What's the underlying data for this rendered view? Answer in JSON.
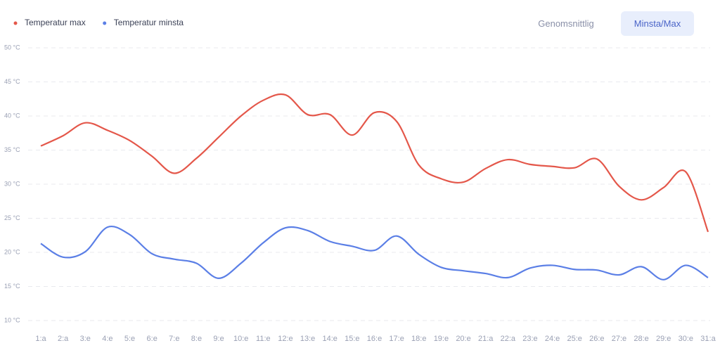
{
  "controls": {
    "options": [
      "Genomsnittlig",
      "Minsta/Max"
    ],
    "active": 1
  },
  "chart_data": {
    "type": "line",
    "categories": [
      "1:a",
      "2:a",
      "3:e",
      "4:e",
      "5:e",
      "6:e",
      "7:e",
      "8:e",
      "9:e",
      "10:e",
      "11:e",
      "12:e",
      "13:e",
      "14:e",
      "15:e",
      "16:e",
      "17:e",
      "18:e",
      "19:e",
      "20:e",
      "21:a",
      "22:a",
      "23:e",
      "24:e",
      "25:e",
      "26:e",
      "27:e",
      "28:e",
      "29:e",
      "30:e",
      "31:a"
    ],
    "series": [
      {
        "name": "Temperatur max",
        "color": "#e4574a",
        "values": [
          35.6,
          37.1,
          39.0,
          37.9,
          36.4,
          34.1,
          31.6,
          33.8,
          36.9,
          40.0,
          42.3,
          43.1,
          40.2,
          40.2,
          37.2,
          40.5,
          39.2,
          32.8,
          30.8,
          30.3,
          32.3,
          33.6,
          32.9,
          32.6,
          32.4,
          33.7,
          29.7,
          27.7,
          29.5,
          31.8,
          23.0
        ]
      },
      {
        "name": "Temperatur minsta",
        "color": "#5b7fe6",
        "values": [
          21.3,
          19.3,
          20.1,
          23.7,
          22.6,
          19.8,
          19.0,
          18.4,
          16.2,
          18.4,
          21.4,
          23.6,
          23.2,
          21.6,
          20.9,
          20.3,
          22.4,
          19.7,
          17.8,
          17.3,
          16.9,
          16.3,
          17.7,
          18.1,
          17.5,
          17.4,
          16.7,
          17.9,
          16.0,
          18.1,
          16.3
        ]
      }
    ],
    "ylim": [
      10,
      50
    ],
    "yticks": [
      {
        "value": 10,
        "label": "10 °C"
      },
      {
        "value": 15,
        "label": "15 °C"
      },
      {
        "value": 20,
        "label": "20 °C"
      },
      {
        "value": 25,
        "label": "25 °C"
      },
      {
        "value": 30,
        "label": "30 °C"
      },
      {
        "value": 35,
        "label": "35 °C"
      },
      {
        "value": 40,
        "label": "40 °C"
      },
      {
        "value": 45,
        "label": "45 °C"
      },
      {
        "value": 50,
        "label": "50 °C"
      }
    ],
    "grid": true,
    "legend": "top-left",
    "smooth": true
  }
}
